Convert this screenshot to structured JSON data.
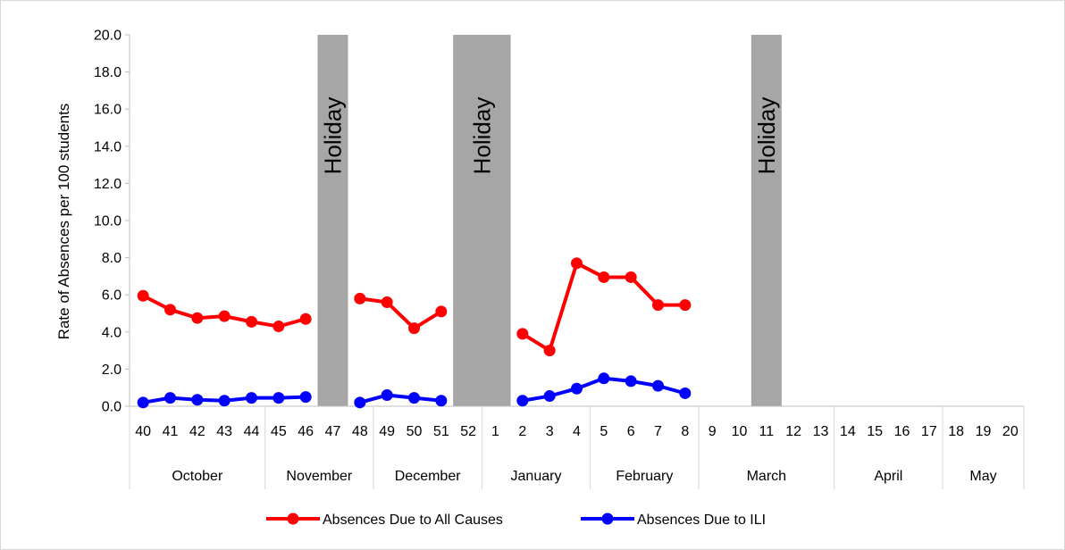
{
  "chart_data": {
    "type": "line",
    "ylabel": "Rate of Absences per 100 students",
    "ylim": [
      0,
      20
    ],
    "yticks": [
      "0.0",
      "2.0",
      "4.0",
      "6.0",
      "8.0",
      "10.0",
      "12.0",
      "14.0",
      "16.0",
      "18.0",
      "20.0"
    ],
    "weeks": [
      "40",
      "41",
      "42",
      "43",
      "44",
      "45",
      "46",
      "47",
      "48",
      "49",
      "50",
      "51",
      "52",
      "1",
      "2",
      "3",
      "4",
      "5",
      "6",
      "7",
      "8",
      "9",
      "10",
      "11",
      "12",
      "13",
      "14",
      "15",
      "16",
      "17",
      "18",
      "19",
      "20"
    ],
    "months": [
      {
        "label": "October",
        "span": [
          0,
          4
        ]
      },
      {
        "label": "November",
        "span": [
          5,
          8
        ]
      },
      {
        "label": "December",
        "span": [
          9,
          12
        ]
      },
      {
        "label": "January",
        "span": [
          13,
          16
        ]
      },
      {
        "label": "February",
        "span": [
          17,
          20
        ]
      },
      {
        "label": "March",
        "span": [
          21,
          25
        ]
      },
      {
        "label": "April",
        "span": [
          26,
          29
        ]
      },
      {
        "label": "May",
        "span": [
          30,
          32
        ]
      }
    ],
    "holidays": [
      {
        "label": "Holiday",
        "weeks": [
          7,
          7
        ]
      },
      {
        "label": "Holiday",
        "weeks": [
          12,
          13
        ]
      },
      {
        "label": "Holiday",
        "weeks": [
          23,
          23
        ]
      }
    ],
    "series": [
      {
        "name": "Absences Due to All Causes",
        "color": "#ff0000",
        "values": [
          5.95,
          5.2,
          4.75,
          4.85,
          4.55,
          4.3,
          4.7,
          null,
          5.8,
          5.6,
          4.2,
          5.1,
          null,
          null,
          3.9,
          3.0,
          7.7,
          6.95,
          6.95,
          5.45,
          5.45,
          null,
          null,
          null,
          null,
          null,
          null,
          null,
          null,
          null,
          null,
          null,
          null
        ]
      },
      {
        "name": "Absences Due to ILI",
        "color": "#0000ff",
        "values": [
          0.2,
          0.45,
          0.35,
          0.3,
          0.45,
          0.45,
          0.5,
          null,
          0.2,
          0.6,
          0.45,
          0.3,
          null,
          null,
          0.3,
          0.55,
          0.95,
          1.5,
          1.35,
          1.1,
          0.7,
          null,
          null,
          null,
          null,
          null,
          null,
          null,
          null,
          null,
          null,
          null,
          null
        ]
      }
    ],
    "grid": false,
    "legend_position": "bottom"
  }
}
